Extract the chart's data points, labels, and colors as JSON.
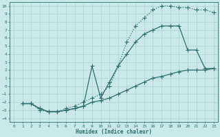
{
  "xlabel": "Humidex (Indice chaleur)",
  "bg_color": "#cbe8e8",
  "grid_color": "#b0d4d4",
  "line_color": "#2d6e6e",
  "xlim": [
    -0.5,
    23.5
  ],
  "ylim": [
    -4.5,
    10.5
  ],
  "xticks": [
    0,
    1,
    2,
    3,
    4,
    5,
    6,
    7,
    8,
    9,
    10,
    11,
    12,
    13,
    14,
    15,
    16,
    17,
    18,
    19,
    20,
    21,
    22,
    23
  ],
  "yticks": [
    -4,
    -3,
    -2,
    -1,
    0,
    1,
    2,
    3,
    4,
    5,
    6,
    7,
    8,
    9,
    10
  ],
  "curve1_x": [
    1,
    2,
    3,
    4,
    5,
    6,
    7,
    8,
    9,
    10,
    11,
    12,
    13,
    14,
    15,
    16,
    17,
    18,
    19,
    20,
    21,
    22,
    23
  ],
  "curve1_y": [
    -2.2,
    -2.2,
    -3.0,
    -3.2,
    -3.2,
    -2.8,
    -2.5,
    -2.0,
    -1.5,
    -1.0,
    0.0,
    2.5,
    5.5,
    7.5,
    8.5,
    9.5,
    10.0,
    10.0,
    9.8,
    9.8,
    9.5,
    9.5,
    9.2
  ],
  "curve2_x": [
    1,
    2,
    3,
    4,
    5,
    6,
    7,
    8,
    9,
    10,
    11,
    12,
    13,
    14,
    15,
    16,
    17,
    18,
    19,
    20,
    21,
    22,
    23
  ],
  "curve2_y": [
    -2.2,
    -2.2,
    -2.8,
    -3.2,
    -3.2,
    -3.0,
    -2.8,
    -2.5,
    -2.0,
    -1.8,
    -1.5,
    -1.0,
    -0.5,
    0.0,
    0.5,
    1.0,
    1.2,
    1.5,
    1.8,
    2.0,
    2.0,
    2.0,
    2.2
  ],
  "curve3_x": [
    1,
    2,
    3,
    4,
    5,
    6,
    7,
    8,
    9,
    10,
    11,
    12,
    13,
    14,
    15,
    16,
    17,
    18,
    19,
    20,
    21,
    22,
    23
  ],
  "curve3_y": [
    -2.2,
    -2.2,
    -2.8,
    -3.2,
    -3.2,
    -3.0,
    -2.8,
    -2.5,
    2.5,
    -1.5,
    0.5,
    2.5,
    4.0,
    5.5,
    6.5,
    7.0,
    7.5,
    7.5,
    7.5,
    4.5,
    4.5,
    2.2,
    2.2
  ],
  "markersize": 2.5,
  "linewidth": 0.9
}
